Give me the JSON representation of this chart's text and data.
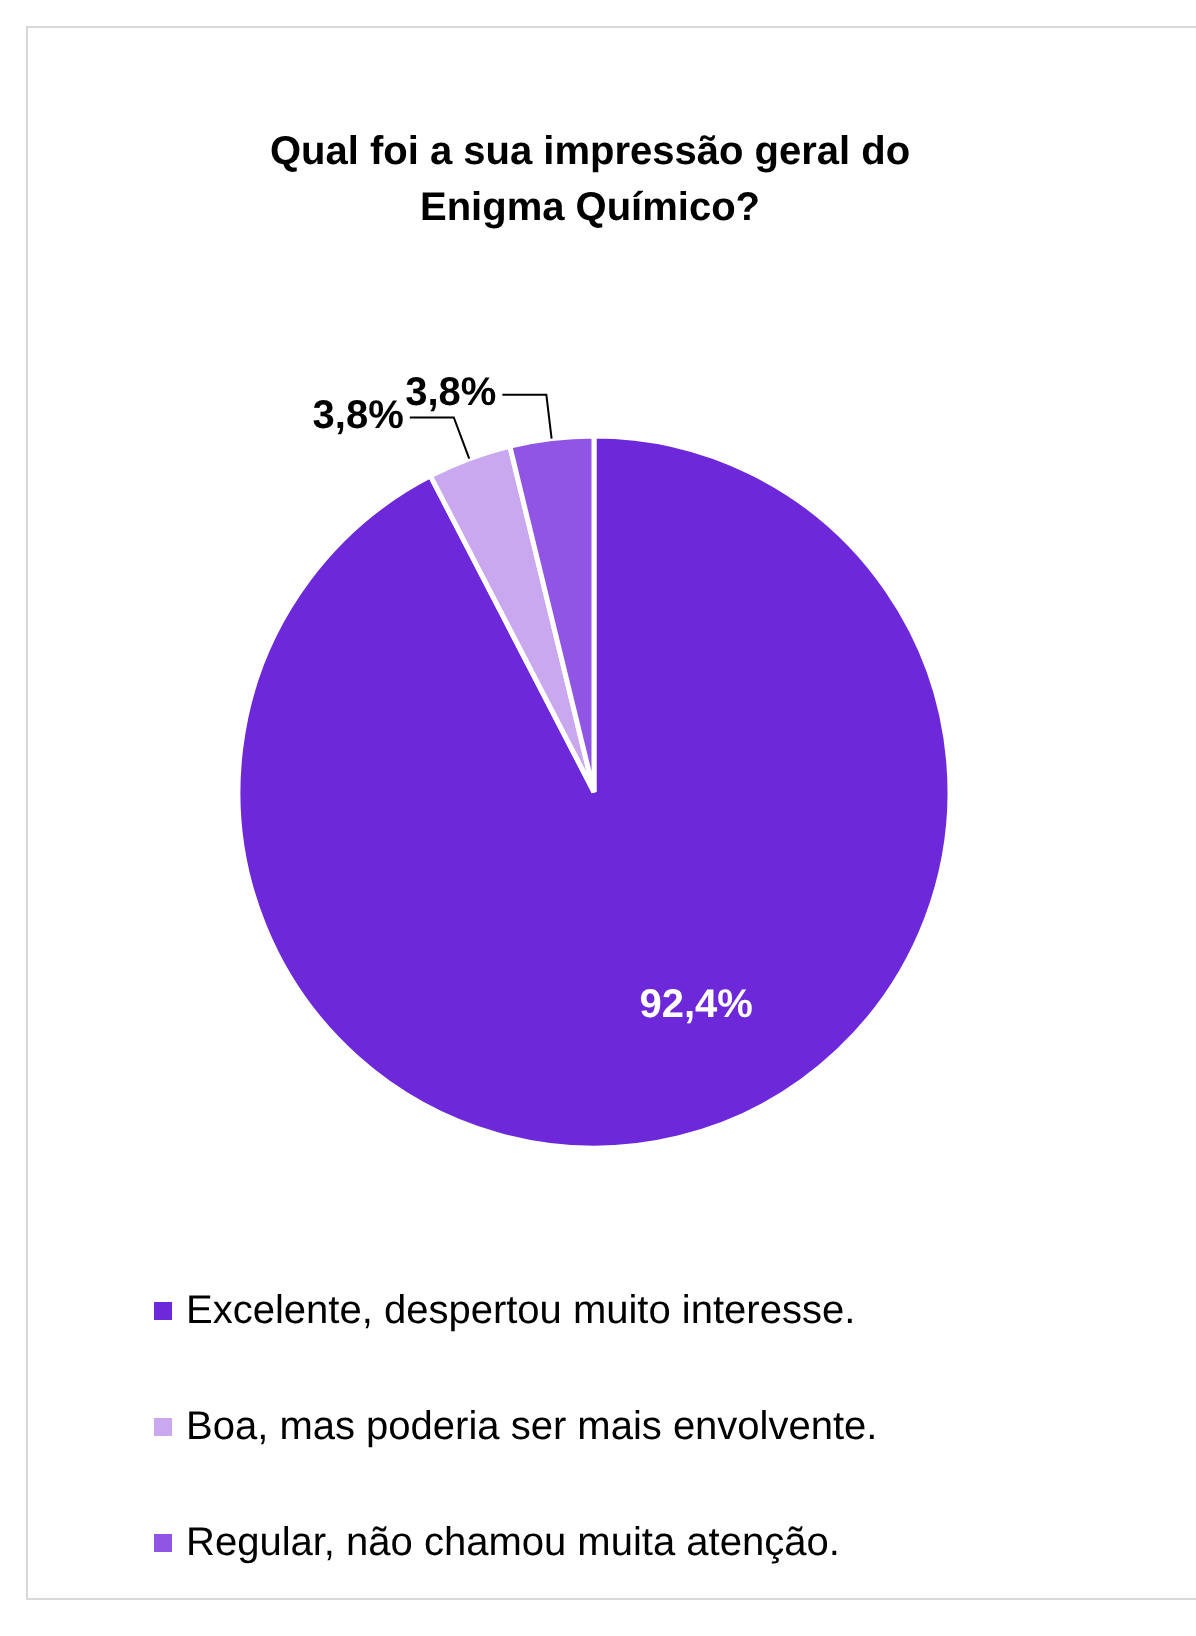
{
  "chart_data": {
    "type": "pie",
    "title": "Qual foi a sua impressão geral do Enigma Químico?",
    "categories": [
      "Excelente, despertou muito interesse.",
      "Boa, mas poderia ser mais envolvente.",
      "Regular, não chamou muita atenção."
    ],
    "values": [
      92.4,
      3.8,
      3.8
    ],
    "colors": [
      "#6d28d9",
      "#c9a8f0",
      "#9155e6"
    ],
    "value_labels": [
      "92,4%",
      "3,8%",
      "3,8%"
    ],
    "legend": "bottom"
  }
}
